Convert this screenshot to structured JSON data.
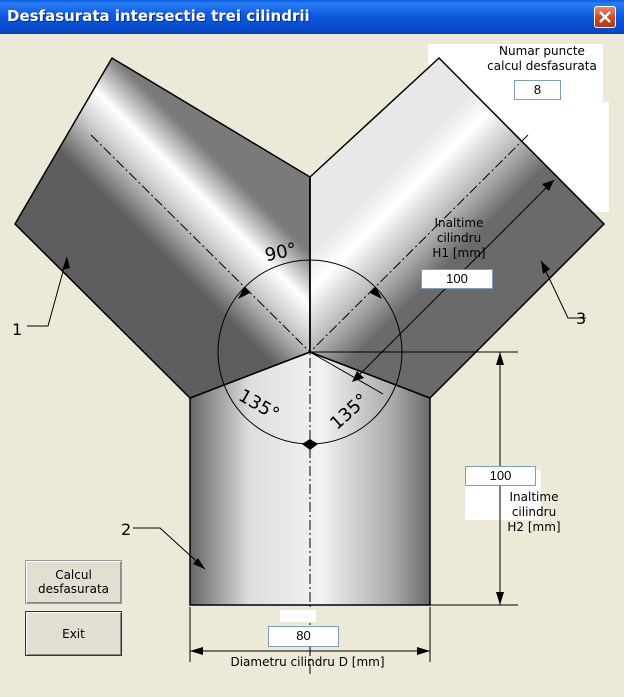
{
  "window": {
    "title": "Desfasurata intersectie trei cilindrii",
    "close_glyph": "✕"
  },
  "colors": {
    "titlebar": "#0a5fe0",
    "background": "#ece9d8",
    "close_button": "#c94b25"
  },
  "drawing": {
    "angle_top": "90°",
    "angle_left": "135°",
    "angle_right": "135°",
    "callout_1": "1",
    "callout_2": "2",
    "callout_3": "3"
  },
  "puncte": {
    "label_line1": "Numar puncte",
    "label_line2": "calcul desfasurata",
    "value": "8"
  },
  "h1": {
    "label_line1": "Inaltime",
    "label_line2": "cilindru",
    "label_line3": "H1 [mm]",
    "value": "100"
  },
  "h2": {
    "label_line1": "Inaltime",
    "label_line2": "cilindru",
    "label_line3": "H2 [mm]",
    "value": "100"
  },
  "diameter": {
    "label": "Diametru cilindru D [mm]",
    "value": "80"
  },
  "buttons": {
    "calc_line1": "Calcul",
    "calc_line2": "desfasurata",
    "exit": "Exit"
  }
}
